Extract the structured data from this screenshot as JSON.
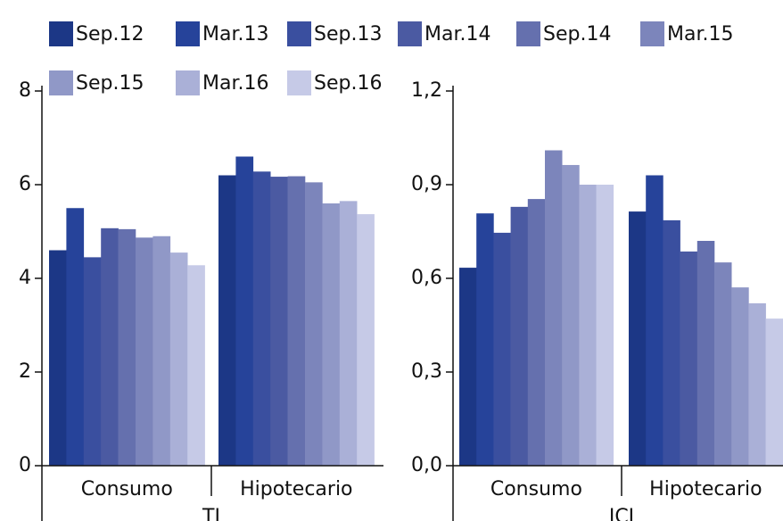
{
  "legend": [
    {
      "name": "Sep.12",
      "color": "#1c3786"
    },
    {
      "name": "Mar.13",
      "color": "#26439a"
    },
    {
      "name": "Sep.13",
      "color": "#3a4f9f"
    },
    {
      "name": "Mar.14",
      "color": "#4b5aa2"
    },
    {
      "name": "Sep.14",
      "color": "#6570ae"
    },
    {
      "name": "Mar.15",
      "color": "#7c85bb"
    },
    {
      "name": "Sep.15",
      "color": "#9098c7"
    },
    {
      "name": "Mar.16",
      "color": "#aab0d7"
    },
    {
      "name": "Sep.16",
      "color": "#c6cae7"
    }
  ],
  "chart_data": [
    {
      "type": "bar",
      "xlabel": "TI",
      "categories": [
        "Consumo",
        "Hipotecario"
      ],
      "series": [
        {
          "values": [
            4.6,
            6.2
          ]
        },
        {
          "values": [
            5.5,
            6.6
          ]
        },
        {
          "values": [
            4.45,
            6.28
          ]
        },
        {
          "values": [
            5.07,
            6.17
          ]
        },
        {
          "values": [
            5.05,
            6.18
          ]
        },
        {
          "values": [
            4.87,
            6.05
          ]
        },
        {
          "values": [
            4.9,
            5.6
          ]
        },
        {
          "values": [
            4.55,
            5.65
          ]
        },
        {
          "values": [
            4.28,
            5.37
          ]
        }
      ],
      "ylim": [
        0,
        8
      ],
      "yticks": [
        0,
        2,
        4,
        6,
        8
      ]
    },
    {
      "type": "bar",
      "xlabel": "ICI",
      "categories": [
        "Consumo",
        "Hipotecario"
      ],
      "series": [
        {
          "values": [
            0.634,
            0.814
          ]
        },
        {
          "values": [
            0.808,
            0.93
          ]
        },
        {
          "values": [
            0.746,
            0.786
          ]
        },
        {
          "values": [
            0.829,
            0.686
          ]
        },
        {
          "values": [
            0.854,
            0.72
          ]
        },
        {
          "values": [
            1.01,
            0.651
          ]
        },
        {
          "values": [
            0.963,
            0.571
          ]
        },
        {
          "values": [
            0.9,
            0.52
          ]
        },
        {
          "values": [
            0.9,
            0.471
          ]
        }
      ],
      "ylim": [
        0,
        1.2
      ],
      "yticks": [
        {
          "value": 0,
          "label": "0,0"
        },
        {
          "value": 0.3,
          "label": "0,3"
        },
        {
          "value": 0.6,
          "label": "0,6"
        },
        {
          "value": 0.9,
          "label": "0,9"
        },
        {
          "value": 1.2,
          "label": "1,2"
        }
      ]
    }
  ]
}
